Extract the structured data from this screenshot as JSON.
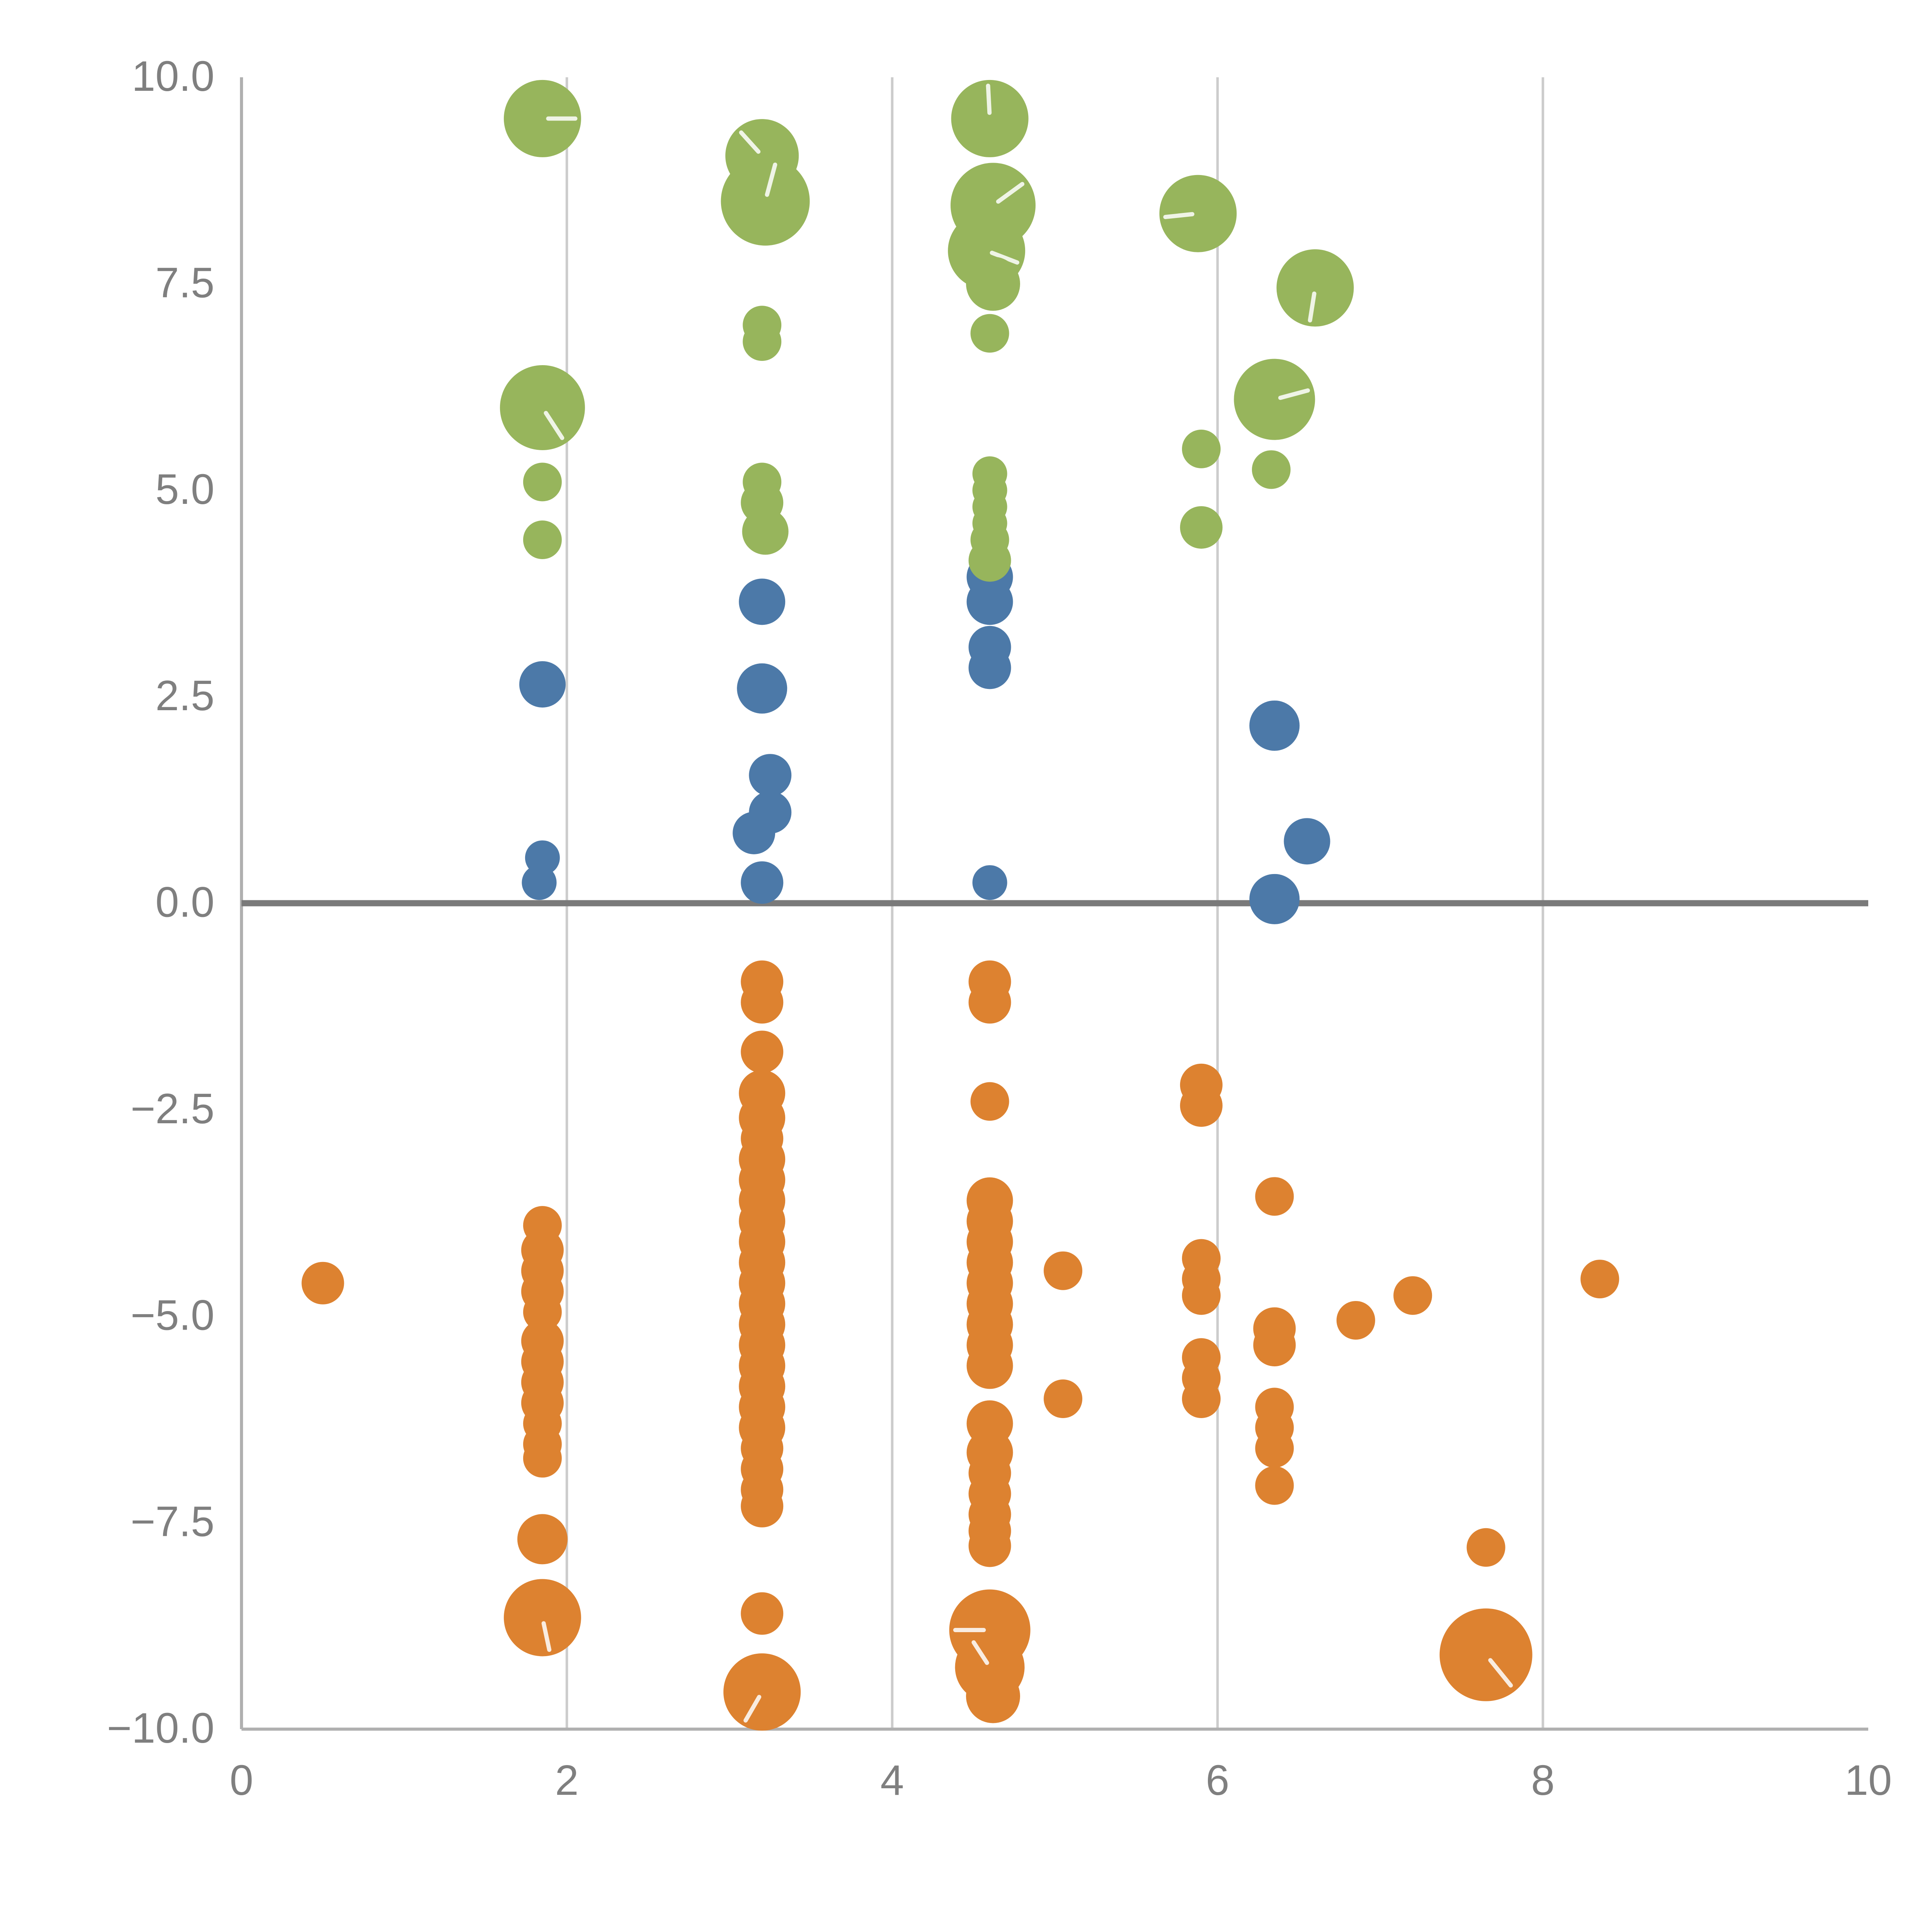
{
  "chart_data": {
    "type": "scatter",
    "title": "",
    "xlabel": "",
    "ylabel": "",
    "xlim": [
      0,
      10
    ],
    "ylim": [
      -10,
      10
    ],
    "x_ticks": [
      0,
      2,
      4,
      6,
      8,
      10
    ],
    "x_tick_labels": [
      "0",
      "2",
      "4",
      "6",
      "8",
      "10"
    ],
    "y_ticks": [
      -10.0,
      -7.5,
      -5.0,
      -2.5,
      0.0,
      2.5,
      5.0,
      7.5,
      10.0
    ],
    "y_tick_labels": [
      "−10.0",
      "−7.5",
      "−5.0",
      "−2.5",
      "0.0",
      "2.5",
      "5.0",
      "7.5",
      "10.0"
    ],
    "grid": {
      "vertical_lines_at": [
        2,
        4,
        6,
        8
      ],
      "zero_line": true,
      "legend": "none"
    },
    "colors": {
      "blue": "#4c79a8",
      "orange": "#dd8230",
      "green": "#97b55c",
      "gridline": "#cccccc",
      "axis": "#b0b0b0",
      "zero_line": "#7a7a7a",
      "tick_label": "#7f7f7f"
    },
    "series": [
      {
        "name": "blue",
        "color": "#4c79a8",
        "points": [
          [
            1.85,
            2.65,
            12
          ],
          [
            1.85,
            0.55,
            9
          ],
          [
            1.83,
            0.25,
            9
          ],
          [
            3.2,
            3.65,
            12
          ],
          [
            3.2,
            2.6,
            13
          ],
          [
            3.25,
            1.55,
            11
          ],
          [
            3.25,
            1.1,
            11
          ],
          [
            3.15,
            0.85,
            11
          ],
          [
            3.2,
            0.25,
            11
          ],
          [
            4.6,
            3.95,
            12
          ],
          [
            4.6,
            3.65,
            12
          ],
          [
            4.6,
            3.1,
            11
          ],
          [
            4.6,
            2.85,
            11
          ],
          [
            4.6,
            0.25,
            9
          ],
          [
            6.35,
            2.15,
            13
          ],
          [
            6.55,
            0.75,
            12
          ],
          [
            6.35,
            0.05,
            13
          ]
        ]
      },
      {
        "name": "orange",
        "color": "#dd8230",
        "points": [
          [
            0.5,
            -4.6,
            11
          ],
          [
            1.85,
            -3.9,
            10
          ],
          [
            1.85,
            -4.2,
            11
          ],
          [
            1.85,
            -4.45,
            11
          ],
          [
            1.85,
            -4.7,
            11
          ],
          [
            1.85,
            -4.95,
            10
          ],
          [
            1.85,
            -5.3,
            11
          ],
          [
            1.85,
            -5.55,
            11
          ],
          [
            1.85,
            -5.8,
            11
          ],
          [
            1.85,
            -6.05,
            11
          ],
          [
            1.85,
            -6.3,
            10
          ],
          [
            1.85,
            -6.55,
            10
          ],
          [
            1.85,
            -6.72,
            10
          ],
          [
            1.85,
            -7.7,
            13
          ],
          [
            1.85,
            -8.65,
            20
          ],
          [
            3.2,
            -0.95,
            11
          ],
          [
            3.2,
            -1.2,
            11
          ],
          [
            3.2,
            -1.8,
            11
          ],
          [
            3.2,
            -2.3,
            12
          ],
          [
            3.2,
            -2.6,
            12
          ],
          [
            3.2,
            -2.85,
            11
          ],
          [
            3.2,
            -3.1,
            12
          ],
          [
            3.2,
            -3.35,
            12
          ],
          [
            3.2,
            -3.6,
            12
          ],
          [
            3.2,
            -3.85,
            12
          ],
          [
            3.2,
            -4.1,
            12
          ],
          [
            3.2,
            -4.35,
            12
          ],
          [
            3.2,
            -4.6,
            12
          ],
          [
            3.2,
            -4.85,
            12
          ],
          [
            3.2,
            -5.1,
            12
          ],
          [
            3.2,
            -5.35,
            12
          ],
          [
            3.2,
            -5.6,
            12
          ],
          [
            3.2,
            -5.85,
            12
          ],
          [
            3.2,
            -6.1,
            12
          ],
          [
            3.2,
            -6.35,
            12
          ],
          [
            3.2,
            -6.6,
            11
          ],
          [
            3.2,
            -6.85,
            11
          ],
          [
            3.2,
            -7.1,
            11
          ],
          [
            3.2,
            -7.3,
            11
          ],
          [
            3.2,
            -8.6,
            11
          ],
          [
            3.2,
            -9.55,
            20
          ],
          [
            4.6,
            -0.95,
            11
          ],
          [
            4.6,
            -1.2,
            11
          ],
          [
            4.6,
            -2.4,
            10
          ],
          [
            4.6,
            -3.6,
            12
          ],
          [
            4.6,
            -3.85,
            12
          ],
          [
            4.6,
            -4.1,
            12
          ],
          [
            4.6,
            -4.35,
            12
          ],
          [
            4.6,
            -4.6,
            12
          ],
          [
            4.6,
            -4.85,
            12
          ],
          [
            4.6,
            -5.1,
            12
          ],
          [
            4.6,
            -5.35,
            12
          ],
          [
            4.6,
            -5.6,
            12
          ],
          [
            4.6,
            -6.3,
            12
          ],
          [
            4.6,
            -6.65,
            12
          ],
          [
            4.6,
            -6.9,
            11
          ],
          [
            4.6,
            -7.15,
            11
          ],
          [
            4.6,
            -7.4,
            11
          ],
          [
            4.6,
            -7.6,
            11
          ],
          [
            4.6,
            -7.78,
            11
          ],
          [
            4.6,
            -8.8,
            21
          ],
          [
            4.6,
            -9.25,
            18
          ],
          [
            4.62,
            -9.6,
            14
          ],
          [
            5.05,
            -4.45,
            10
          ],
          [
            5.05,
            -6.0,
            10
          ],
          [
            5.9,
            -2.2,
            11
          ],
          [
            5.9,
            -2.45,
            11
          ],
          [
            5.9,
            -4.3,
            10
          ],
          [
            5.9,
            -4.55,
            10
          ],
          [
            5.9,
            -4.75,
            10
          ],
          [
            5.9,
            -5.5,
            10
          ],
          [
            5.9,
            -5.75,
            10
          ],
          [
            5.9,
            -6.0,
            10
          ],
          [
            6.35,
            -3.55,
            10
          ],
          [
            6.35,
            -5.15,
            11
          ],
          [
            6.35,
            -5.35,
            11
          ],
          [
            6.35,
            -6.1,
            10
          ],
          [
            6.35,
            -6.35,
            10
          ],
          [
            6.35,
            -6.6,
            10
          ],
          [
            6.35,
            -7.05,
            10
          ],
          [
            6.85,
            -5.05,
            10
          ],
          [
            7.2,
            -4.75,
            10
          ],
          [
            7.65,
            -7.8,
            10
          ],
          [
            7.65,
            -9.1,
            24
          ],
          [
            8.35,
            -4.55,
            10
          ]
        ]
      },
      {
        "name": "green",
        "color": "#97b55c",
        "points": [
          [
            1.85,
            9.5,
            20
          ],
          [
            1.85,
            6.0,
            22
          ],
          [
            1.85,
            5.1,
            10
          ],
          [
            1.85,
            4.4,
            10
          ],
          [
            3.2,
            9.05,
            19
          ],
          [
            3.22,
            8.5,
            23
          ],
          [
            3.2,
            7.0,
            10
          ],
          [
            3.2,
            6.8,
            10
          ],
          [
            3.2,
            5.1,
            10
          ],
          [
            3.2,
            4.85,
            11
          ],
          [
            3.22,
            4.5,
            12
          ],
          [
            4.6,
            9.5,
            20
          ],
          [
            4.62,
            8.45,
            22
          ],
          [
            4.58,
            7.9,
            20
          ],
          [
            4.62,
            7.5,
            14
          ],
          [
            4.6,
            6.9,
            10
          ],
          [
            4.6,
            5.2,
            9
          ],
          [
            4.6,
            5.0,
            9
          ],
          [
            4.6,
            4.8,
            9
          ],
          [
            4.6,
            4.6,
            9
          ],
          [
            4.6,
            4.4,
            10
          ],
          [
            4.6,
            4.15,
            11
          ],
          [
            5.88,
            8.35,
            20
          ],
          [
            5.9,
            5.5,
            10
          ],
          [
            5.9,
            4.55,
            11
          ],
          [
            6.35,
            6.1,
            21
          ],
          [
            6.33,
            5.25,
            10
          ],
          [
            6.6,
            7.45,
            20
          ]
        ]
      }
    ]
  }
}
